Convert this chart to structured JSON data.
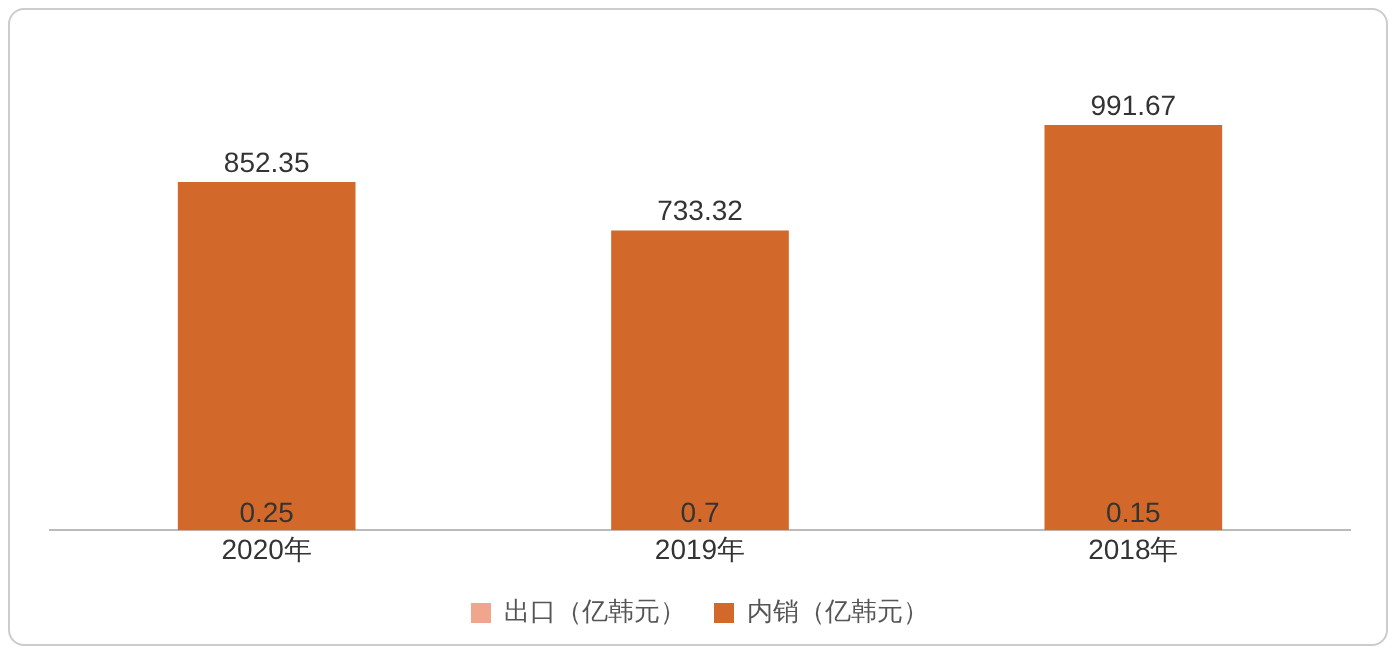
{
  "chart_data": {
    "type": "bar",
    "stacked": true,
    "categories": [
      "2020年",
      "2019年",
      "2018年"
    ],
    "series": [
      {
        "name": "出口（亿韩元）",
        "color": "#f0a68c",
        "values": [
          0.25,
          0.7,
          0.15
        ]
      },
      {
        "name": "内销（亿韩元）",
        "color": "#d2692a",
        "values": [
          852.35,
          733.32,
          991.67
        ]
      }
    ],
    "data_labels": true,
    "legend": "bottom",
    "grid": false,
    "tick_labels": "x"
  }
}
